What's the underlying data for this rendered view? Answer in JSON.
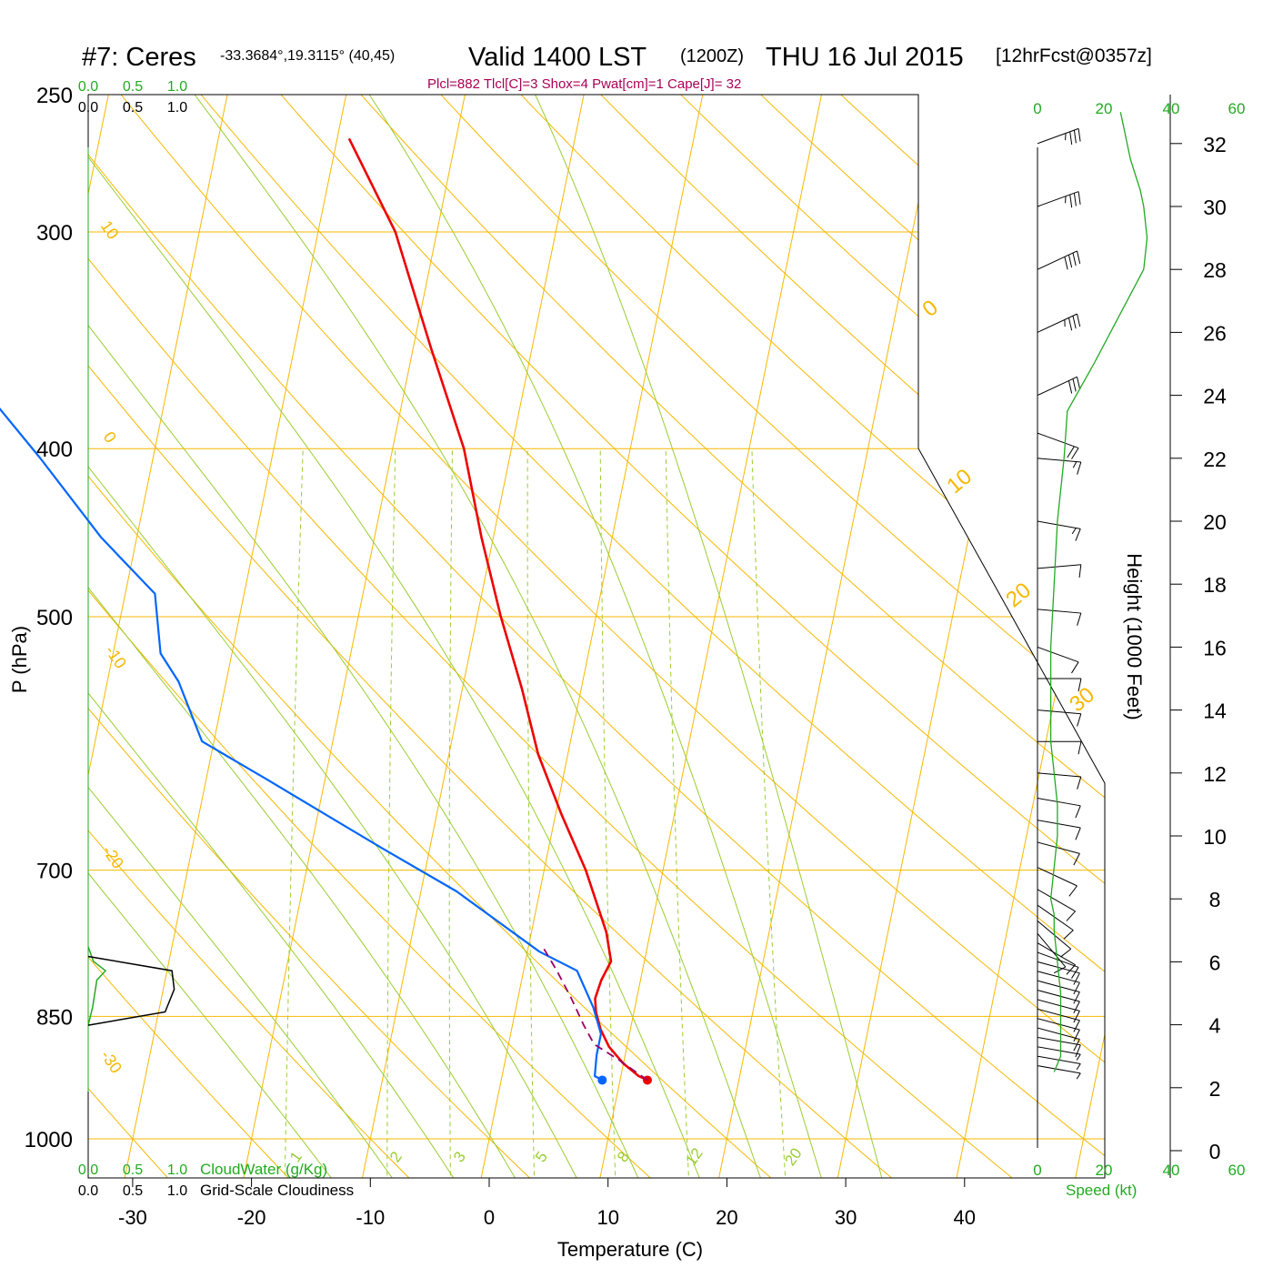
{
  "header": {
    "station": "#7: Ceres",
    "location": "-33.3684°,19.3115° (40,45)",
    "valid": "Valid 1400 LST",
    "zulu": "(1200Z)",
    "date": "THU 16 Jul 2015",
    "forecast": "[12hrFcst@0357z]",
    "indices": "Plcl=882 Tlcl[C]=3 Shox=4 Pwat[cm]=1 Cape[J]= 32"
  },
  "colors": {
    "isotherm": "#f5b800",
    "dry_adiabat": "#f5b800",
    "moist_adiabat": "#9acd32",
    "mixing_ratio": "#9acd32",
    "temperature": "#ee0000",
    "dewpoint": "#0066ff",
    "parcel": "#990066",
    "cloud_water": "#22aa22",
    "cloudiness": "#000000",
    "wind_speed": "#22aa22",
    "indices_text": "#aa0055"
  },
  "chart_data": {
    "type": "line",
    "diagram": "skew-T log-P",
    "xlabel": "Temperature (C)",
    "ylabel": "P (hPa)",
    "right_ylabel": "Height (1000 Feet)",
    "x_ticks": [
      "-30",
      "-20",
      "-10",
      "0",
      "10",
      "20",
      "30",
      "40"
    ],
    "p_ticks": [
      "250",
      "300",
      "400",
      "500",
      "700",
      "850",
      "1000"
    ],
    "height_ticks": [
      "32",
      "30",
      "28",
      "26",
      "24",
      "22",
      "20",
      "18",
      "16",
      "14",
      "12",
      "10",
      "8",
      "6",
      "4",
      "2",
      "0"
    ],
    "isopleth_labels": {
      "dry_adiabat_left": [
        "10",
        "0",
        "-10",
        "-20",
        "-30"
      ],
      "dry_adiabat_right": [
        "0",
        "10",
        "20",
        "30"
      ],
      "mixing_ratio": [
        "1",
        "2",
        "3",
        "5",
        "8",
        "12",
        "20"
      ]
    },
    "series": [
      {
        "name": "temperature",
        "points": [
          [
            12.3,
            925
          ],
          [
            11.5,
            920
          ],
          [
            10.0,
            905
          ],
          [
            8.5,
            885
          ],
          [
            7.5,
            865
          ],
          [
            6.8,
            845
          ],
          [
            6.5,
            830
          ],
          [
            6.7,
            810
          ],
          [
            7.2,
            790
          ],
          [
            6.3,
            760
          ],
          [
            3.5,
            700
          ],
          [
            0.5,
            650
          ],
          [
            -2.5,
            600
          ],
          [
            -5.0,
            550
          ],
          [
            -8.0,
            500
          ],
          [
            -11.0,
            450
          ],
          [
            -14.0,
            400
          ],
          [
            -18.5,
            350
          ],
          [
            -23.5,
            300
          ],
          [
            -29.0,
            265
          ]
        ]
      },
      {
        "name": "dewpoint",
        "points": [
          [
            8.5,
            925
          ],
          [
            7.8,
            920
          ],
          [
            7.6,
            895
          ],
          [
            7.6,
            870
          ],
          [
            6.5,
            840
          ],
          [
            4.5,
            800
          ],
          [
            1.0,
            780
          ],
          [
            -7.0,
            720
          ],
          [
            -14.0,
            680
          ],
          [
            -25.0,
            620
          ],
          [
            -31.0,
            590
          ],
          [
            -34.0,
            545
          ],
          [
            -36.0,
            525
          ],
          [
            -37.5,
            485
          ],
          [
            -43.0,
            450
          ],
          [
            -49.5,
            405
          ],
          [
            -54.5,
            375
          ],
          [
            -61.0,
            355
          ],
          [
            -66.0,
            340
          ],
          [
            -64.5,
            330
          ],
          [
            -63.5,
            310
          ],
          [
            -63.0,
            300
          ],
          [
            -62.0,
            290
          ],
          [
            -61.5,
            275
          ],
          [
            -59.8,
            265
          ]
        ]
      },
      {
        "name": "parcel",
        "points": [
          [
            12.3,
            925
          ],
          [
            9.5,
            900
          ],
          [
            7.2,
            882
          ],
          [
            6.0,
            860
          ],
          [
            4.5,
            830
          ],
          [
            2.8,
            800
          ],
          [
            1.2,
            775
          ]
        ]
      }
    ],
    "cloud_water": {
      "xlabel": "CloudWater (g/Kg)",
      "ticks": [
        "0.0",
        "0.5",
        "1.0"
      ],
      "points": [
        [
          0.0,
          775
        ],
        [
          0.06,
          790
        ],
        [
          0.2,
          800
        ],
        [
          0.1,
          810
        ],
        [
          0.05,
          840
        ],
        [
          0.0,
          860
        ]
      ]
    },
    "cloudiness": {
      "xlabel": "Grid-Scale Cloudiness",
      "ticks": [
        "0.0",
        "0.5",
        "1.0"
      ],
      "points": [
        [
          0.0,
          785
        ],
        [
          0.74,
          800
        ],
        [
          0.76,
          820
        ],
        [
          0.68,
          845
        ],
        [
          0.0,
          860
        ]
      ]
    },
    "wind_speed": {
      "xlabel": "Speed (kt)",
      "ticks": [
        "0",
        "20",
        "40",
        "60"
      ],
      "points": [
        [
          5,
          2.5
        ],
        [
          7,
          3.0
        ],
        [
          7,
          4.0
        ],
        [
          7,
          5.0
        ],
        [
          6,
          6.0
        ],
        [
          5,
          7.0
        ],
        [
          5,
          7.5
        ],
        [
          4,
          8.0
        ],
        [
          5,
          9.0
        ],
        [
          6,
          10.0
        ],
        [
          6,
          11.0
        ],
        [
          5,
          12.0
        ],
        [
          4,
          13.0
        ],
        [
          4,
          14.0
        ],
        [
          4,
          16.0
        ],
        [
          5,
          18.0
        ],
        [
          6,
          20.0
        ],
        [
          8,
          22.0
        ],
        [
          9,
          23.5
        ],
        [
          17,
          25.0
        ],
        [
          27,
          27.0
        ],
        [
          32,
          28.0
        ],
        [
          33,
          29.0
        ],
        [
          32,
          30.0
        ],
        [
          31,
          30.5
        ],
        [
          28,
          31.5
        ],
        [
          25,
          33.0
        ]
      ]
    },
    "wind_barbs": [
      {
        "height": 32.0,
        "dir": 250,
        "speed": 35
      },
      {
        "height": 30.0,
        "dir": 250,
        "speed": 35
      },
      {
        "height": 28.0,
        "dir": 245,
        "speed": 40
      },
      {
        "height": 26.0,
        "dir": 245,
        "speed": 35
      },
      {
        "height": 24.0,
        "dir": 245,
        "speed": 30
      },
      {
        "height": 22.8,
        "dir": 290,
        "speed": 20
      },
      {
        "height": 22.0,
        "dir": 275,
        "speed": 15
      },
      {
        "height": 20.0,
        "dir": 280,
        "speed": 15
      },
      {
        "height": 18.5,
        "dir": 265,
        "speed": 10
      },
      {
        "height": 17.2,
        "dir": 275,
        "speed": 10
      },
      {
        "height": 16.0,
        "dir": 290,
        "speed": 10
      },
      {
        "height": 15.0,
        "dir": 270,
        "speed": 10
      },
      {
        "height": 14.0,
        "dir": 275,
        "speed": 10
      },
      {
        "height": 13.0,
        "dir": 270,
        "speed": 10
      },
      {
        "height": 12.0,
        "dir": 275,
        "speed": 10
      },
      {
        "height": 11.2,
        "dir": 280,
        "speed": 10
      },
      {
        "height": 10.5,
        "dir": 280,
        "speed": 10
      },
      {
        "height": 9.8,
        "dir": 285,
        "speed": 10
      },
      {
        "height": 9.0,
        "dir": 295,
        "speed": 10
      },
      {
        "height": 8.3,
        "dir": 300,
        "speed": 10
      },
      {
        "height": 7.8,
        "dir": 305,
        "speed": 10
      },
      {
        "height": 7.3,
        "dir": 310,
        "speed": 10
      },
      {
        "height": 6.9,
        "dir": 320,
        "speed": 10
      },
      {
        "height": 6.6,
        "dir": 300,
        "speed": 10
      },
      {
        "height": 6.3,
        "dir": 290,
        "speed": 10
      },
      {
        "height": 6.0,
        "dir": 285,
        "speed": 10
      },
      {
        "height": 5.7,
        "dir": 285,
        "speed": 10
      },
      {
        "height": 5.4,
        "dir": 285,
        "speed": 10
      },
      {
        "height": 5.1,
        "dir": 285,
        "speed": 10
      },
      {
        "height": 4.8,
        "dir": 285,
        "speed": 10
      },
      {
        "height": 4.5,
        "dir": 285,
        "speed": 10
      },
      {
        "height": 4.2,
        "dir": 285,
        "speed": 10
      },
      {
        "height": 3.9,
        "dir": 285,
        "speed": 10
      },
      {
        "height": 3.6,
        "dir": 280,
        "speed": 10
      },
      {
        "height": 3.3,
        "dir": 280,
        "speed": 5
      },
      {
        "height": 3.0,
        "dir": 280,
        "speed": 5
      },
      {
        "height": 2.7,
        "dir": 280,
        "speed": 5
      }
    ]
  }
}
